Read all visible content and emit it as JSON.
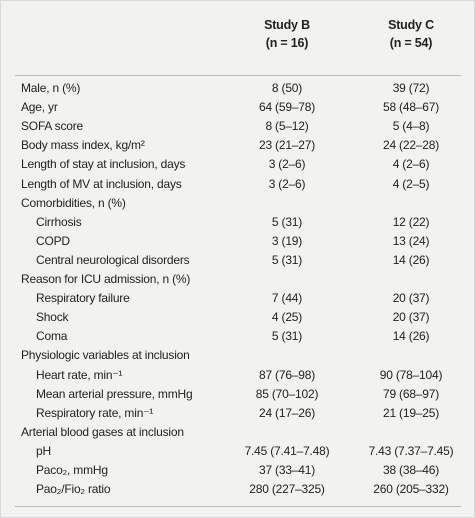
{
  "table": {
    "columns": [
      {
        "title": "Study B",
        "subtitle": "(n = 16)"
      },
      {
        "title": "Study C",
        "subtitle": "(n = 54)"
      }
    ],
    "rows": [
      {
        "label": "Male, n (%)",
        "cells": [
          "8 (50)",
          "39 (72)"
        ]
      },
      {
        "label": "Age, yr",
        "cells": [
          "64 (59–78)",
          "58 (48–67)"
        ]
      },
      {
        "label": "SOFA score",
        "cells": [
          "8 (5–12)",
          "5 (4–8)"
        ]
      },
      {
        "label": "Body mass index, kg/m²",
        "cells": [
          "23 (21–27)",
          "24 (22–28)"
        ]
      },
      {
        "label": "Length of stay at inclusion, days",
        "cells": [
          "3 (2–6)",
          "4 (2–6)"
        ]
      },
      {
        "label": "Length of MV at inclusion, days",
        "cells": [
          "3 (2–6)",
          "4 (2–5)"
        ]
      },
      {
        "label": "Comorbidities, n (%)",
        "items": [
          {
            "label": "Cirrhosis",
            "cells": [
              "5 (31)",
              "12 (22)"
            ]
          },
          {
            "label": "COPD",
            "cells": [
              "3 (19)",
              "13 (24)"
            ]
          },
          {
            "label": "Central neurological disorders",
            "cells": [
              "5 (31)",
              "14 (26)"
            ]
          }
        ]
      },
      {
        "label": "Reason for ICU admission, n (%)",
        "items": [
          {
            "label": "Respiratory failure",
            "cells": [
              "7 (44)",
              "20 (37)"
            ]
          },
          {
            "label": "Shock",
            "cells": [
              "4 (25)",
              "20 (37)"
            ]
          },
          {
            "label": "Coma",
            "cells": [
              "5 (31)",
              "14 (26)"
            ]
          }
        ]
      },
      {
        "label": "Physiologic variables at inclusion",
        "items": [
          {
            "label": "Heart rate, min⁻¹",
            "cells": [
              "87 (76–98)",
              "90 (78–104)"
            ]
          },
          {
            "label": "Mean arterial pressure, mmHg",
            "cells": [
              "85 (70–102)",
              "79 (68–97)"
            ]
          },
          {
            "label": "Respiratory rate, min⁻¹",
            "cells": [
              "24 (17–26)",
              "21 (19–25)"
            ]
          }
        ]
      },
      {
        "label": "Arterial blood gases at inclusion",
        "items": [
          {
            "label": "pH",
            "cells": [
              "7.45 (7.41–7.48)",
              "7.43 (7.37–7.45)"
            ]
          },
          {
            "label": "Paco₂, mmHg",
            "cells": [
              "37 (33–41)",
              "38 (38–46)"
            ]
          },
          {
            "label": "Pao₂/Fio₂ ratio",
            "cells": [
              "280 (227–325)",
              "260 (205–332)"
            ]
          }
        ]
      }
    ]
  }
}
